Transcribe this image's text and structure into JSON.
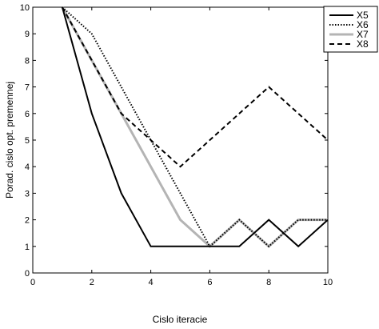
{
  "chart_data": {
    "type": "line",
    "xlabel": "Cislo iteracie",
    "ylabel": "Porad. cislo opt. premennej",
    "xlim": [
      0,
      10
    ],
    "ylim": [
      0,
      10
    ],
    "xticks": [
      0,
      2,
      4,
      6,
      8,
      10
    ],
    "yticks": [
      0,
      1,
      2,
      3,
      4,
      5,
      6,
      7,
      8,
      9,
      10
    ],
    "grid": false,
    "legend_position": "top-right",
    "x": [
      1,
      2,
      3,
      4,
      5,
      6,
      7,
      8,
      9,
      10
    ],
    "series": [
      {
        "name": "X5",
        "values": [
          10,
          6,
          3,
          1,
          1,
          1,
          1,
          2,
          1,
          2
        ],
        "color": "#000000",
        "style": "solid"
      },
      {
        "name": "X6",
        "values": [
          10,
          9,
          7,
          5,
          3,
          1,
          2,
          1,
          2,
          2
        ],
        "color": "#000000",
        "style": "dotted"
      },
      {
        "name": "X7",
        "values": [
          10,
          8,
          6,
          4,
          2,
          1,
          2,
          1,
          2,
          2
        ],
        "color": "#b4b4b4",
        "style": "solid"
      },
      {
        "name": "X8",
        "values": [
          10,
          8,
          6,
          5,
          4,
          5,
          6,
          7,
          6,
          5
        ],
        "color": "#000000",
        "style": "dashed"
      }
    ]
  }
}
